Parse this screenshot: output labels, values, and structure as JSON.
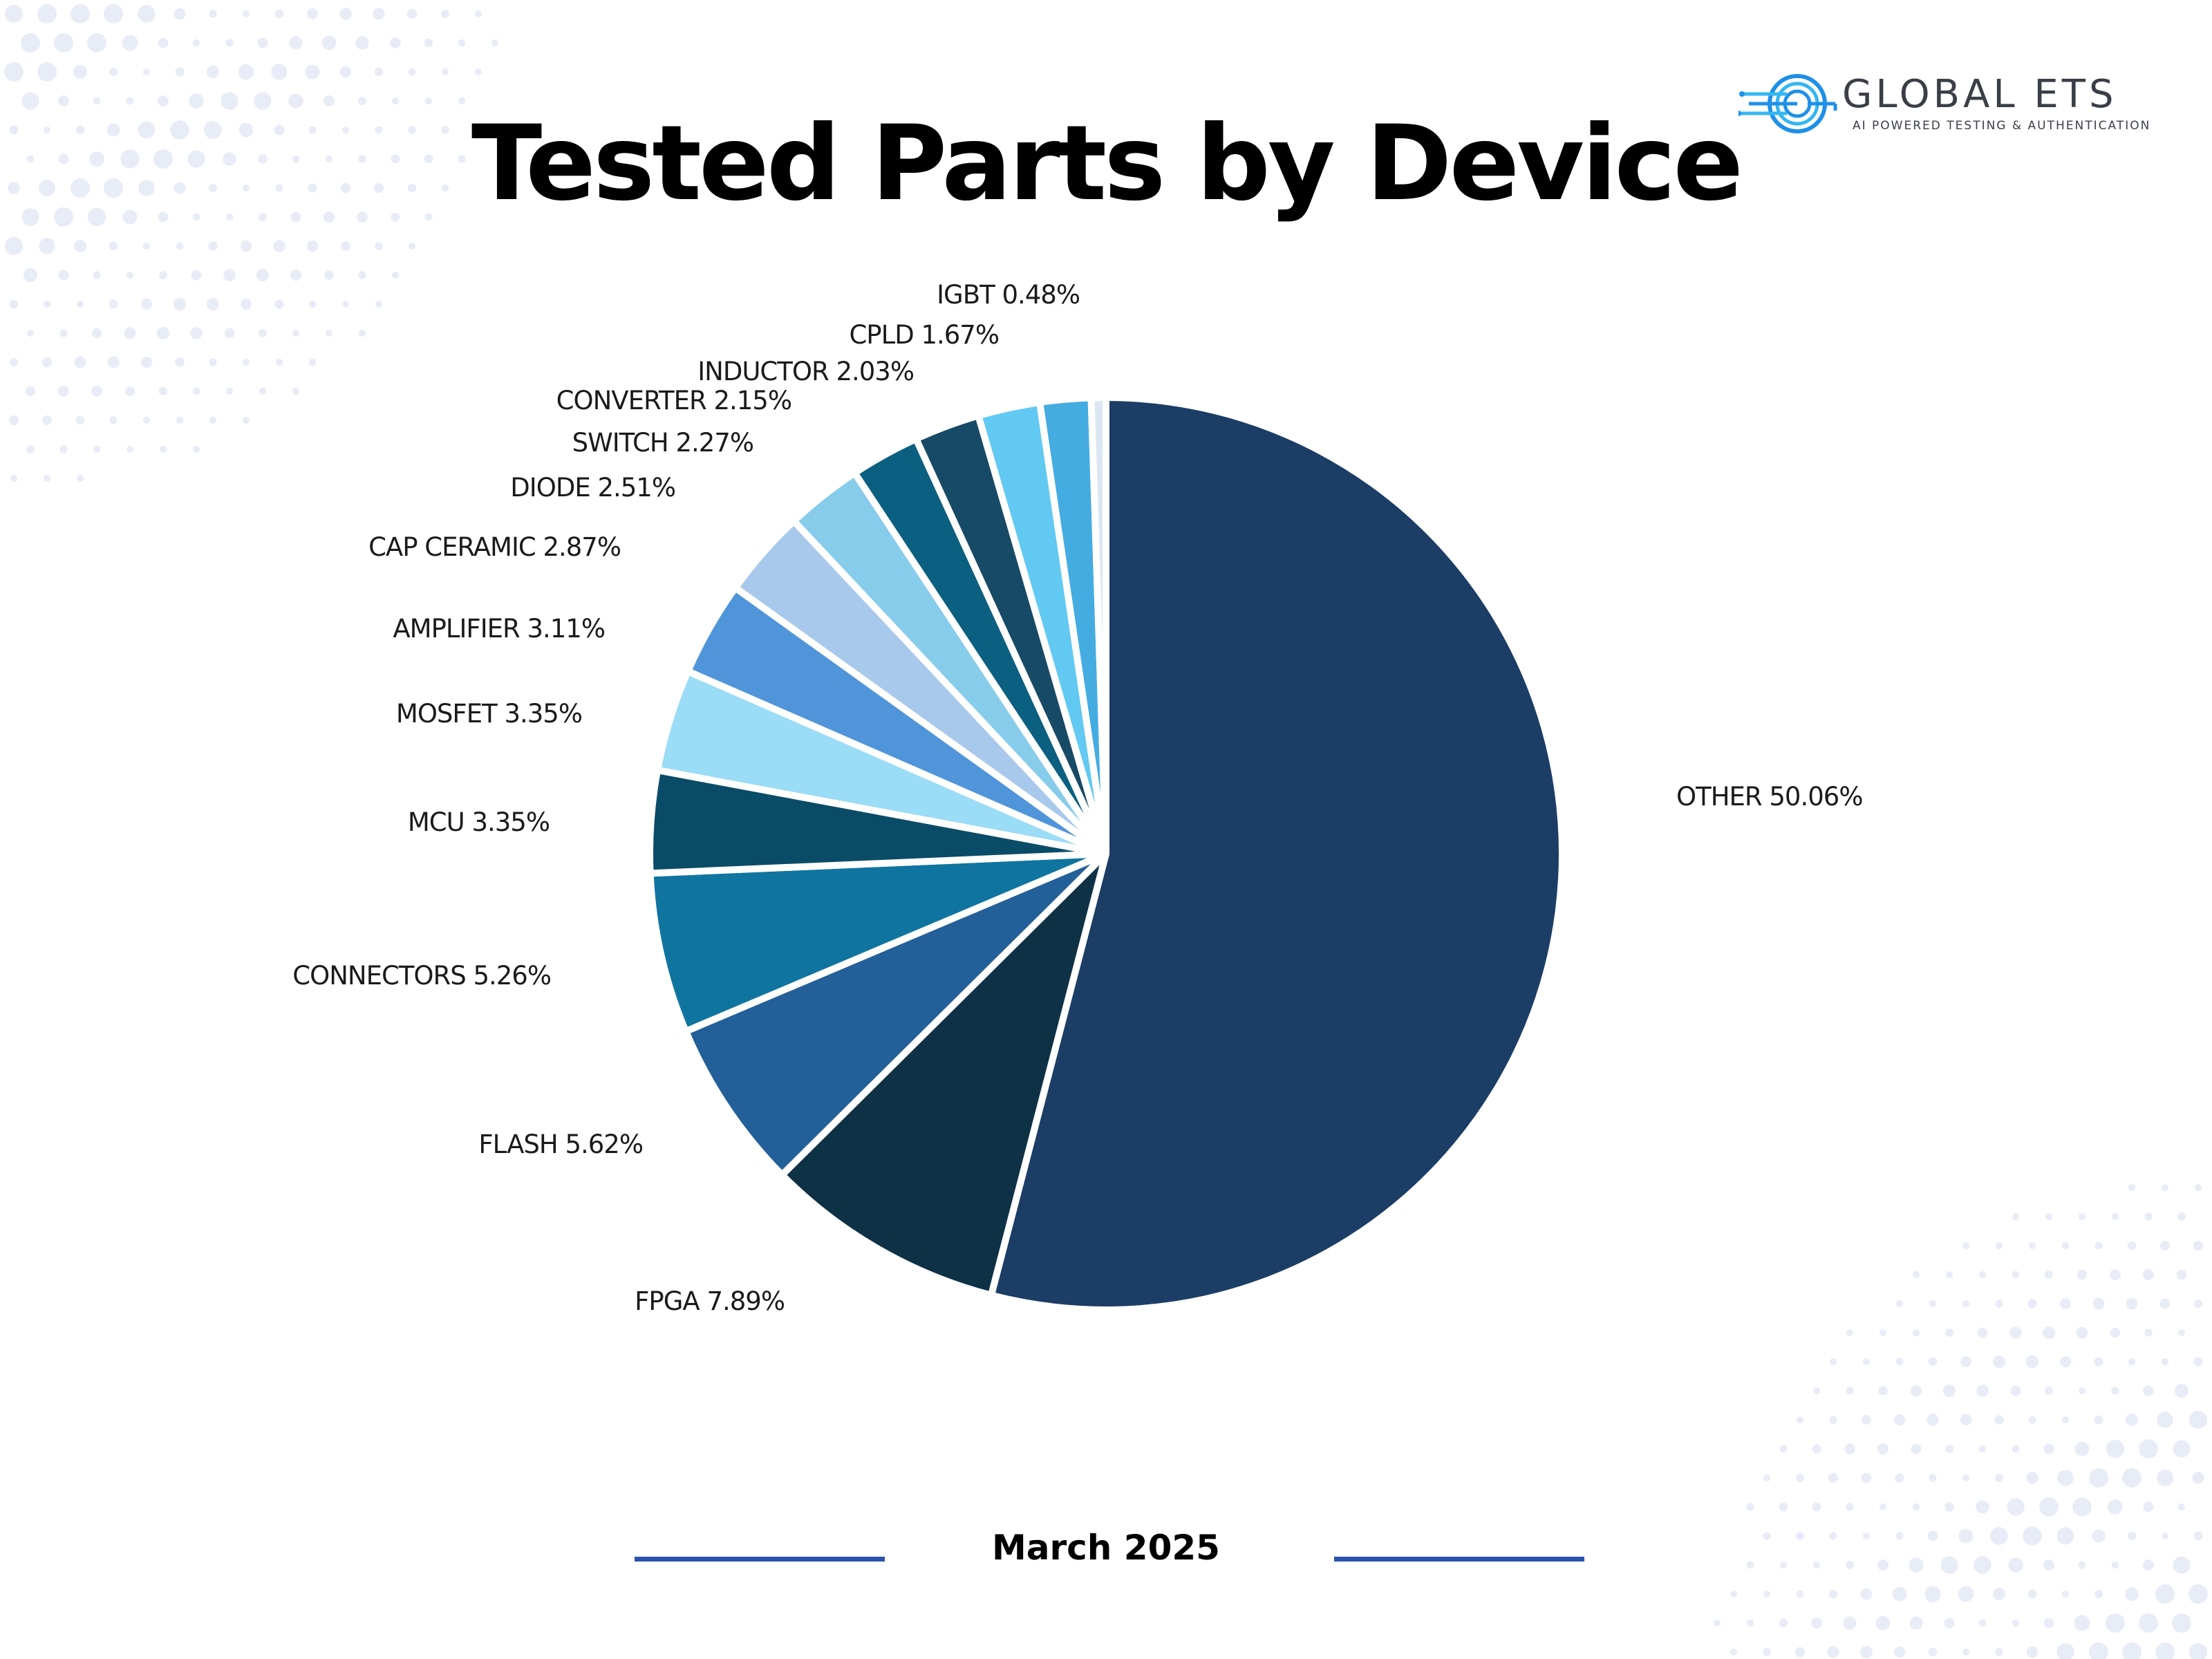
{
  "title": "Tested Parts by Device",
  "logo": {
    "name": "GLOBAL ETS",
    "tagline": "AI POWERED TESTING & AUTHENTICATION"
  },
  "footer": {
    "date": "March 2025"
  },
  "colors": {
    "accent_line": "#2b53ad",
    "dots": "#e8ecf6"
  },
  "chart_data": {
    "type": "pie",
    "title": "Tested Parts by Device",
    "start_angle_deg": 0,
    "direction": "clockwise",
    "slices": [
      {
        "label": "OTHER",
        "value": 50.06,
        "display": "OTHER 50.06%",
        "color": "#1b3d66"
      },
      {
        "label": "FPGA",
        "value": 7.89,
        "display": "FPGA 7.89%",
        "color": "#0e3146"
      },
      {
        "label": "FLASH",
        "value": 5.62,
        "display": "FLASH 5.62%",
        "color": "#235f99"
      },
      {
        "label": "CONNECTORS",
        "value": 5.26,
        "display": "CONNECTORS 5.26%",
        "color": "#0f75a0"
      },
      {
        "label": "MCU",
        "value": 3.35,
        "display": "MCU 3.35%",
        "color": "#0a4c68"
      },
      {
        "label": "MOSFET",
        "value": 3.35,
        "display": "MOSFET 3.35%",
        "color": "#9bdcf7"
      },
      {
        "label": "AMPLIFIER",
        "value": 3.11,
        "display": "AMPLIFIER 3.11%",
        "color": "#5095da"
      },
      {
        "label": "CAP CERAMIC",
        "value": 2.87,
        "display": "CAP CERAMIC 2.87%",
        "color": "#a8c9ec"
      },
      {
        "label": "DIODE",
        "value": 2.51,
        "display": "DIODE 2.51%",
        "color": "#88ccec"
      },
      {
        "label": "SWITCH",
        "value": 2.27,
        "display": "SWITCH 2.27%",
        "color": "#0b5f80"
      },
      {
        "label": "CONVERTER",
        "value": 2.15,
        "display": "CONVERTER 2.15%",
        "color": "#174a66"
      },
      {
        "label": "INDUCTOR",
        "value": 2.03,
        "display": "INDUCTOR 2.03%",
        "color": "#62c9f2"
      },
      {
        "label": "CPLD",
        "value": 1.67,
        "display": "CPLD 1.67%",
        "color": "#45ace2"
      },
      {
        "label": "IGBT",
        "value": 0.48,
        "display": "IGBT 0.48%",
        "color": "#dbe6f2"
      }
    ]
  }
}
